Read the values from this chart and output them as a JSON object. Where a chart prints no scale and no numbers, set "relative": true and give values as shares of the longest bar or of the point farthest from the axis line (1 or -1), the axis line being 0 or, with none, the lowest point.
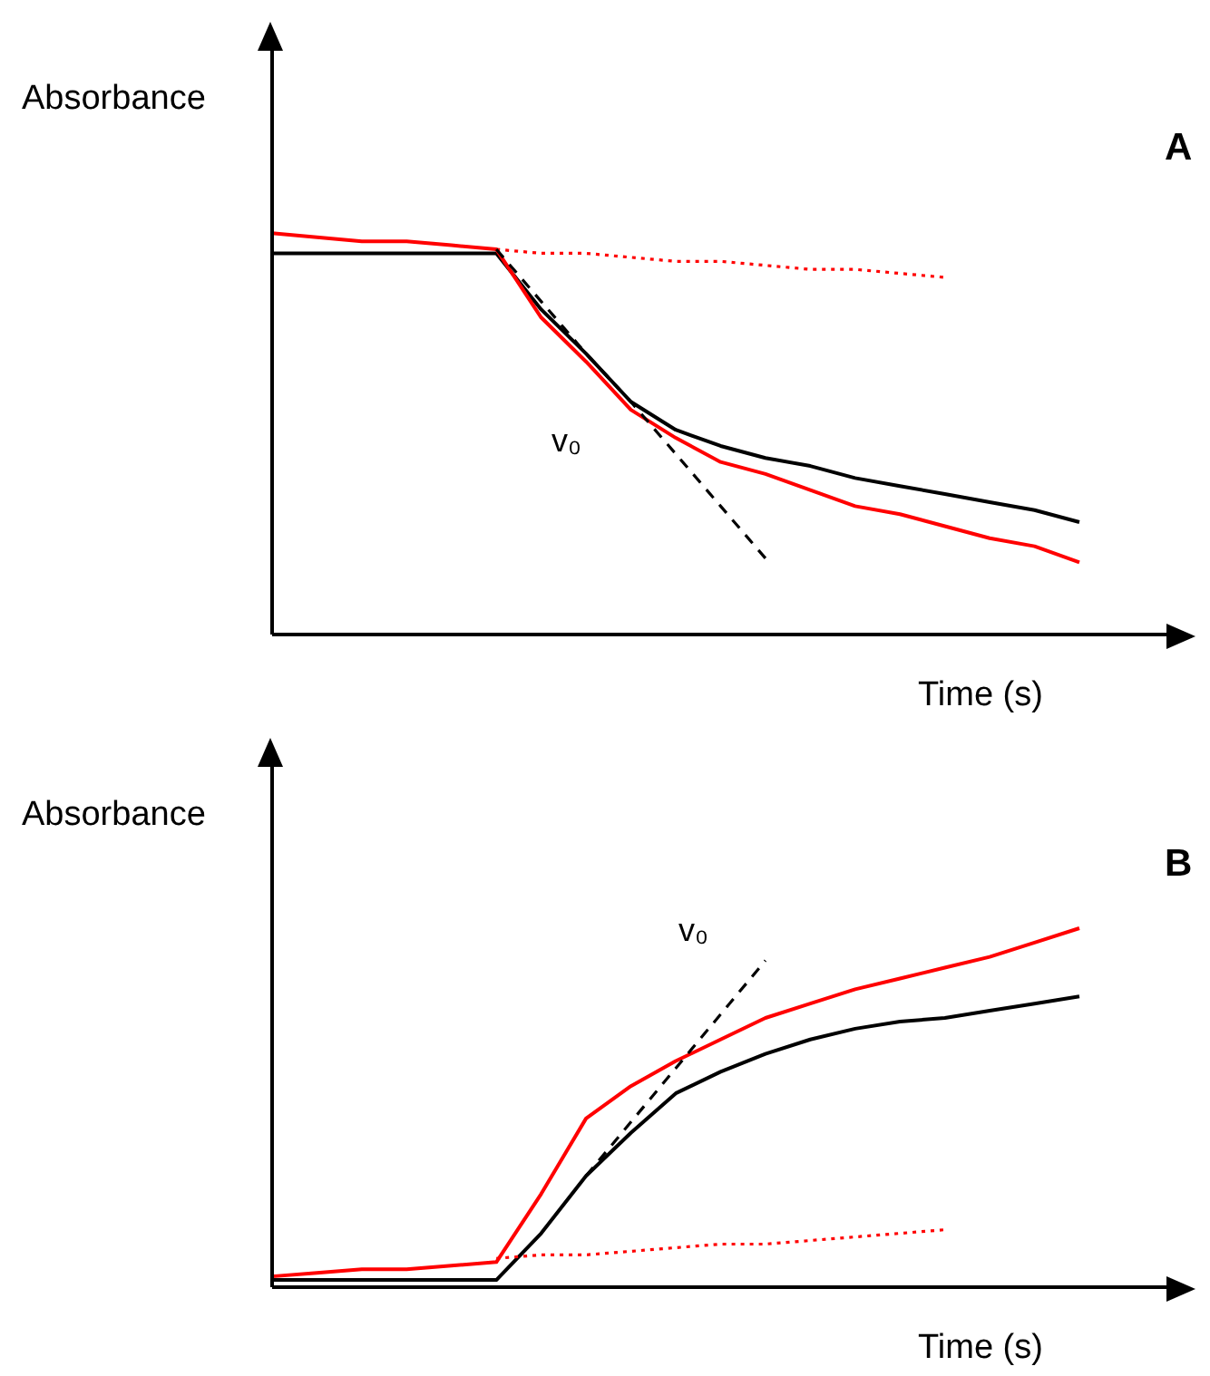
{
  "chart_data": [
    {
      "type": "line",
      "xlabel": "Time (s)",
      "ylabel": "Absorbance",
      "relative": true,
      "marker": "none",
      "annotations": [
        "v₀",
        "A"
      ],
      "categories": [
        null,
        null,
        null,
        null,
        null,
        null,
        null,
        null,
        null,
        null,
        null,
        null,
        null,
        null,
        null,
        null,
        null,
        null,
        null
      ],
      "series": [
        {
          "color": "#000000",
          "line_style": "solid",
          "values": [
            0.95,
            0.95,
            0.95,
            0.95,
            0.95,
            0.95,
            0.81,
            0.7,
            0.58,
            0.51,
            0.47,
            0.44,
            0.42,
            0.39,
            0.37,
            0.35,
            0.33,
            0.31,
            0.28
          ]
        },
        {
          "color": "#ff0000",
          "line_style": "solid",
          "values": [
            1.0,
            0.99,
            0.98,
            0.98,
            0.97,
            0.96,
            0.79,
            0.68,
            0.56,
            0.49,
            0.43,
            0.4,
            0.36,
            0.32,
            0.3,
            0.27,
            0.24,
            0.22,
            0.18
          ]
        },
        {
          "color": "#ff0000",
          "line_style": "dotted",
          "values": [
            null,
            null,
            null,
            null,
            null,
            0.96,
            0.95,
            0.95,
            0.94,
            0.93,
            0.93,
            0.92,
            0.91,
            0.91,
            0.9,
            0.89,
            null,
            null,
            null
          ]
        },
        {
          "color": "#000000",
          "line_style": "dashed",
          "values": [
            null,
            null,
            null,
            null,
            null,
            0.96,
            0.83,
            0.7,
            0.58,
            0.45,
            0.32,
            0.19,
            null,
            null,
            null,
            null,
            null,
            null,
            null
          ]
        }
      ]
    },
    {
      "type": "line",
      "xlabel": "Time (s)",
      "ylabel": "Absorbance",
      "relative": true,
      "marker": "none",
      "annotations": [
        "v₀",
        "B"
      ],
      "categories": [
        null,
        null,
        null,
        null,
        null,
        null,
        null,
        null,
        null,
        null,
        null,
        null,
        null,
        null,
        null,
        null,
        null,
        null,
        null
      ],
      "series": [
        {
          "color": "#000000",
          "line_style": "solid",
          "values": [
            0.02,
            0.02,
            0.02,
            0.02,
            0.02,
            0.02,
            0.15,
            0.31,
            0.43,
            0.54,
            0.6,
            0.65,
            0.69,
            0.72,
            0.74,
            0.75,
            0.77,
            0.79,
            0.81
          ]
        },
        {
          "color": "#ff0000",
          "line_style": "solid",
          "values": [
            0.03,
            0.04,
            0.05,
            0.05,
            0.06,
            0.07,
            0.26,
            0.47,
            0.56,
            0.63,
            0.69,
            0.75,
            0.79,
            0.83,
            0.86,
            0.89,
            0.92,
            0.96,
            1.0
          ]
        },
        {
          "color": "#ff0000",
          "line_style": "dotted",
          "values": [
            null,
            null,
            null,
            null,
            null,
            0.08,
            0.09,
            0.09,
            0.1,
            0.11,
            0.12,
            0.12,
            0.13,
            0.14,
            0.15,
            0.16,
            null,
            null,
            null
          ]
        },
        {
          "color": "#000000",
          "line_style": "dashed",
          "values": [
            null,
            null,
            null,
            null,
            null,
            null,
            null,
            0.31,
            0.46,
            0.61,
            0.76,
            0.91,
            null,
            null,
            null,
            null,
            null,
            null,
            null
          ]
        }
      ]
    }
  ]
}
